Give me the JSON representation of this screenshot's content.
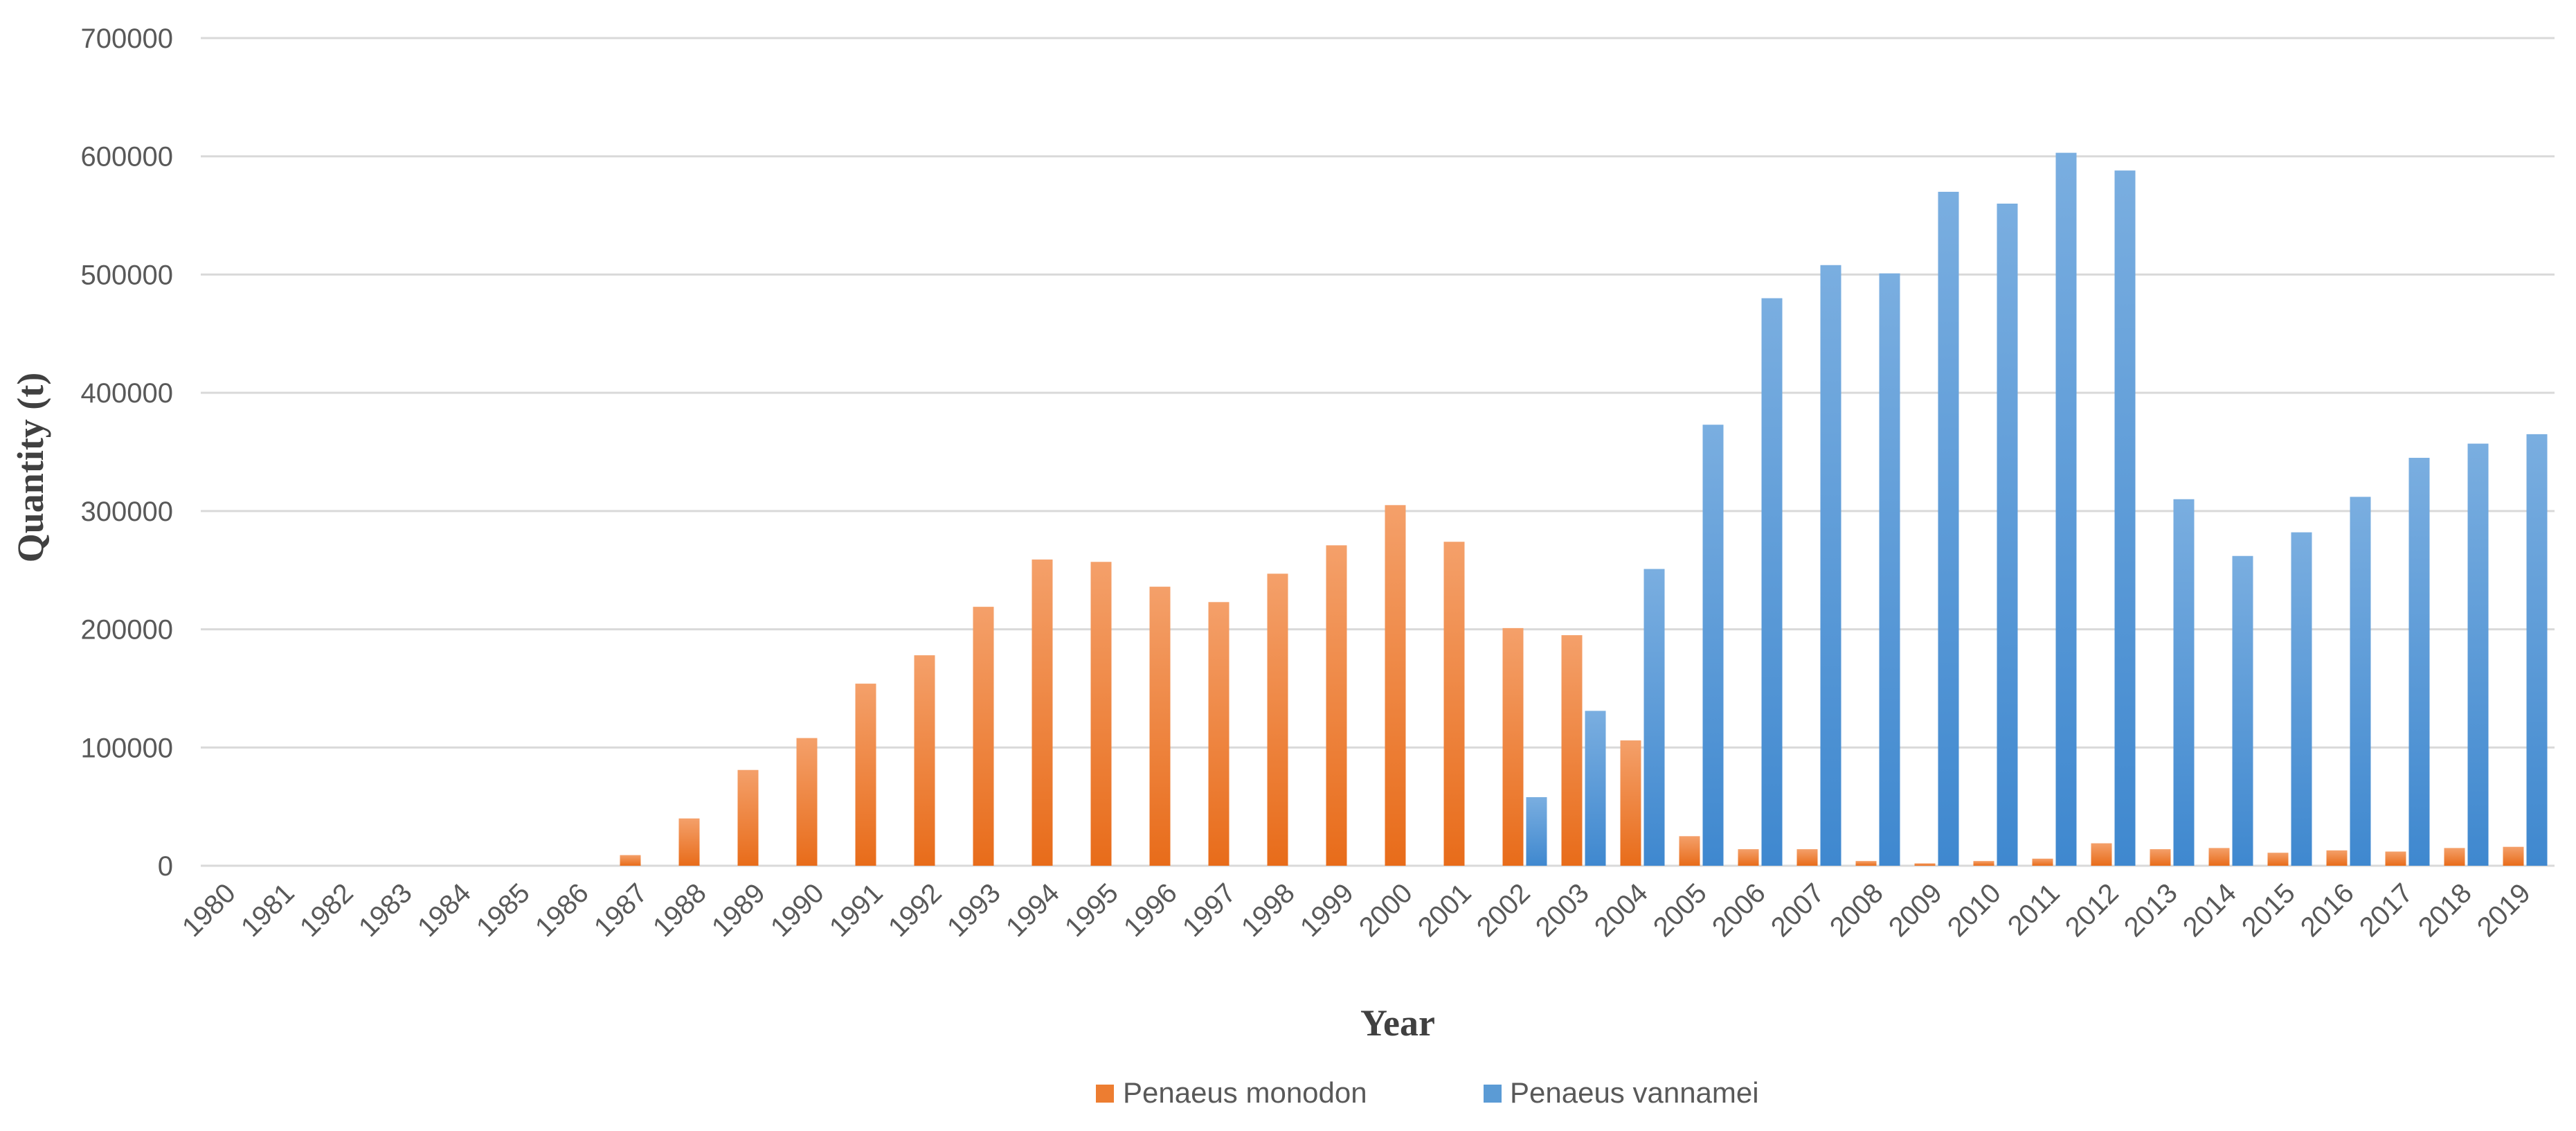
{
  "chart_data": {
    "type": "bar",
    "title": "",
    "xlabel": "Year",
    "ylabel": "Quantity (t)",
    "ylim": [
      0,
      700000
    ],
    "yticks": [
      0,
      100000,
      200000,
      300000,
      400000,
      500000,
      600000,
      700000
    ],
    "ytick_labels": [
      "0",
      "100000",
      "200000",
      "300000",
      "400000",
      "500000",
      "600000",
      "700000"
    ],
    "grid": true,
    "legend_position": "bottom",
    "categories": [
      "1980",
      "1981",
      "1982",
      "1983",
      "1984",
      "1985",
      "1986",
      "1987",
      "1988",
      "1989",
      "1990",
      "1991",
      "1992",
      "1993",
      "1994",
      "1995",
      "1996",
      "1997",
      "1998",
      "1999",
      "2000",
      "2001",
      "2002",
      "2003",
      "2004",
      "2005",
      "2006",
      "2007",
      "2008",
      "2009",
      "2010",
      "2011",
      "2012",
      "2013",
      "2014",
      "2015",
      "2016",
      "2017",
      "2018",
      "2019"
    ],
    "series": [
      {
        "name": "Penaeus monodon",
        "color": "#ED7D31",
        "values": [
          0,
          0,
          0,
          0,
          0,
          0,
          0,
          9000,
          40000,
          81000,
          108000,
          154000,
          178000,
          219000,
          259000,
          257000,
          236000,
          223000,
          247000,
          271000,
          305000,
          274000,
          201000,
          195000,
          106000,
          25000,
          14000,
          14000,
          4000,
          2000,
          4000,
          6000,
          19000,
          14000,
          15000,
          11000,
          13000,
          12000,
          15000,
          16000
        ]
      },
      {
        "name": "Penaeus vannamei",
        "color": "#5B9BD5",
        "values": [
          0,
          0,
          0,
          0,
          0,
          0,
          0,
          0,
          0,
          0,
          0,
          0,
          0,
          0,
          0,
          0,
          0,
          0,
          0,
          0,
          0,
          0,
          58000,
          131000,
          251000,
          373000,
          480000,
          508000,
          501000,
          570000,
          560000,
          603000,
          588000,
          310000,
          262000,
          282000,
          312000,
          345000,
          357000,
          365000
        ]
      }
    ]
  }
}
